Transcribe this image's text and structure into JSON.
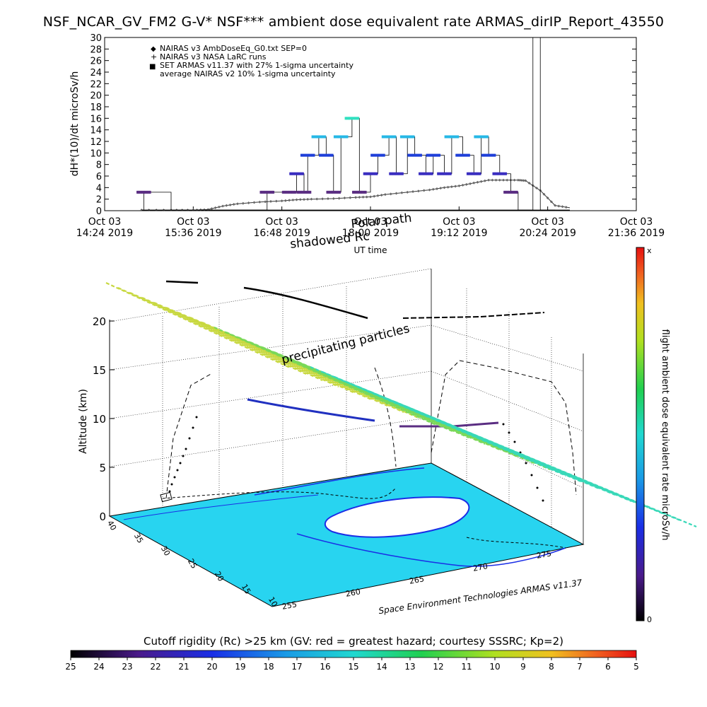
{
  "title": "NSF_NCAR_GV_FM2 G-V* NSF*** ambient dose equivalent rate ARMAS_dirIP_Report_43550",
  "colors": {
    "background": "#ffffff",
    "flight_line": "#000000",
    "nairas_v3": "#333333",
    "armas_low": "#5a2d82",
    "armas_mid": "#1e3fd9",
    "armas_high": "#26b8e6",
    "armas_top": "#30e0c0"
  },
  "chart_data": [
    {
      "type": "line",
      "ylabel": "dH*(10)/dt microSv/h",
      "ylim": [
        0,
        30
      ],
      "yticks": [
        0,
        2,
        4,
        6,
        8,
        10,
        12,
        14,
        16,
        18,
        20,
        22,
        24,
        26,
        28,
        30
      ],
      "xticks": [
        {
          "line1": "Oct 03",
          "line2": "14:24 2019"
        },
        {
          "line1": "Oct 03",
          "line2": "15:36 2019"
        },
        {
          "line1": "Oct 03",
          "line2": "16:48 2019"
        },
        {
          "line1": "Oct 03",
          "line2": "18:00 2019"
        },
        {
          "line1": "Oct 03",
          "line2": "19:12 2019"
        },
        {
          "line1": "Oct 03",
          "line2": "20:24 2019"
        },
        {
          "line1": "Oct 03",
          "line2": "21:36 2019"
        }
      ],
      "xlabel": "UT time",
      "annotations": [
        "Polar path",
        "shadowed Rc"
      ],
      "legend": {
        "placement": "top-left",
        "entries": [
          {
            "symbol": "◆",
            "label": "NAIRAS v3 AmbDoseEq_G0.txt SEP=0"
          },
          {
            "symbol": "+",
            "label": "NAIRAS v3 NASA LaRC runs"
          },
          {
            "symbol": "■",
            "label": "SET ARMAS v11.37 with 27% 1-sigma uncertainty"
          },
          {
            "symbol": "",
            "label": "average NAIRAS v2 10% 1-sigma uncertainty"
          }
        ]
      },
      "series": [
        {
          "name": "NAIRAS v3 AmbDoseEq_G0.txt SEP=0",
          "x": [
            14.9,
            15.3,
            15.6,
            15.8,
            16.0,
            16.2,
            16.5,
            16.8,
            17.0,
            17.2,
            17.5,
            17.8,
            18.0,
            18.2,
            18.5,
            18.8,
            19.0,
            19.2,
            19.4,
            19.6,
            19.8,
            20.0,
            20.1,
            20.3,
            20.5,
            20.7
          ],
          "y": [
            0.1,
            0.1,
            0.1,
            0.2,
            0.8,
            1.2,
            1.5,
            1.7,
            1.9,
            2.0,
            2.1,
            2.3,
            2.4,
            2.8,
            3.2,
            3.6,
            4.0,
            4.3,
            4.8,
            5.3,
            5.3,
            5.3,
            5.2,
            3.5,
            0.9,
            0.5
          ]
        },
        {
          "name": "SET ARMAS v11.37 with 27% 1-sigma uncertainty",
          "x": [
            14.93,
            15.3,
            16.6,
            16.9,
            17.0,
            17.1,
            17.15,
            17.3,
            17.4,
            17.5,
            17.6,
            17.75,
            17.85,
            18.0,
            18.1,
            18.25,
            18.35,
            18.5,
            18.6,
            18.75,
            18.85,
            19.0,
            19.1,
            19.25,
            19.4,
            19.5,
            19.6,
            19.75,
            19.9,
            20.0,
            20.1,
            20.2,
            20.3,
            20.4,
            20.5
          ],
          "y": [
            3.2,
            0.1,
            3.2,
            3.2,
            6.4,
            3.2,
            9.6,
            12.8,
            9.6,
            3.2,
            12.8,
            16.0,
            3.2,
            6.4,
            9.6,
            12.8,
            6.4,
            12.8,
            9.6,
            6.4,
            9.6,
            6.4,
            12.8,
            9.6,
            6.4,
            12.8,
            9.6,
            6.4,
            3.2,
            0.1,
            0.1,
            30.0,
            0.1,
            0.1,
            0.1
          ]
        }
      ]
    },
    {
      "type": "scatter",
      "zlabel": "Altitude (km)",
      "zticks": [
        0,
        5,
        10,
        15,
        20
      ],
      "lat_ticks": [
        "40",
        "35",
        "30",
        "25",
        "20",
        "15",
        "10"
      ],
      "lon_ticks": [
        "255",
        "260",
        "265",
        "270",
        "275"
      ],
      "annotation": "precipitating particles",
      "credit": "Space Environment Technologies ARMAS v11.37",
      "colorbar_label": "flight ambient dose equivalent rate microSv/h",
      "colorbar_top": "x",
      "colorbar_bottom": "0"
    },
    {
      "type": "heatmap",
      "label": "Cutoff rigidity (Rc) >25 km (GV: red = greatest hazard; courtesy SSSRC; Kp=2)",
      "ticks": [
        "25",
        "24",
        "23",
        "22",
        "21",
        "20",
        "19",
        "18",
        "17",
        "16",
        "15",
        "14",
        "13",
        "12",
        "11",
        "10",
        "9",
        "8",
        "7",
        "6",
        "5"
      ]
    }
  ]
}
